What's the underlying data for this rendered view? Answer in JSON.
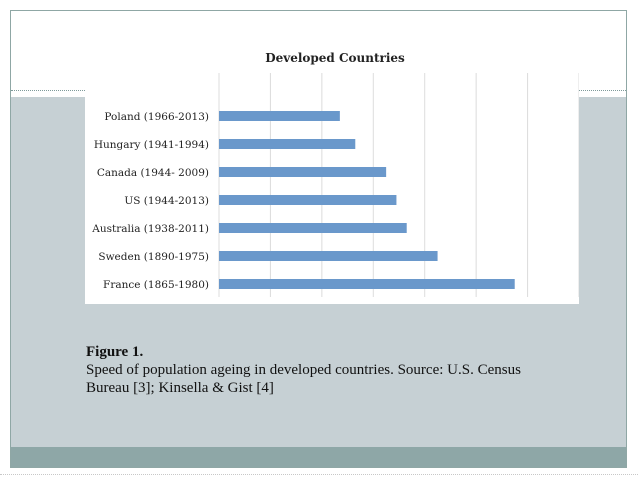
{
  "chart_data": {
    "type": "bar",
    "orientation": "horizontal",
    "title": "Developed Countries",
    "categories": [
      "Poland (1966-2013)",
      "Hungary (1941-1994)",
      "Canada (1944- 2009)",
      "US (1944-2013)",
      "Australia (1938-2011)",
      "Sweden (1890-1975)",
      "France (1865-1980)"
    ],
    "values": [
      47,
      53,
      65,
      69,
      73,
      85,
      115
    ],
    "xlim": [
      0,
      140
    ],
    "xticks": [
      0,
      20,
      40,
      60,
      80,
      100,
      120,
      140
    ],
    "xlabel": "",
    "ylabel": "",
    "grid": "vertical",
    "bar_color": "#6a98cb"
  },
  "caption": {
    "title": "Figure 1.",
    "text": "Speed of population ageing in developed countries. Source: U.S. Census Bureau [3]; Kinsella & Gist [4]"
  },
  "colors": {
    "panel": "#c6d0d4",
    "band": "#8ea7a7",
    "frame": "#8fa7a5"
  }
}
